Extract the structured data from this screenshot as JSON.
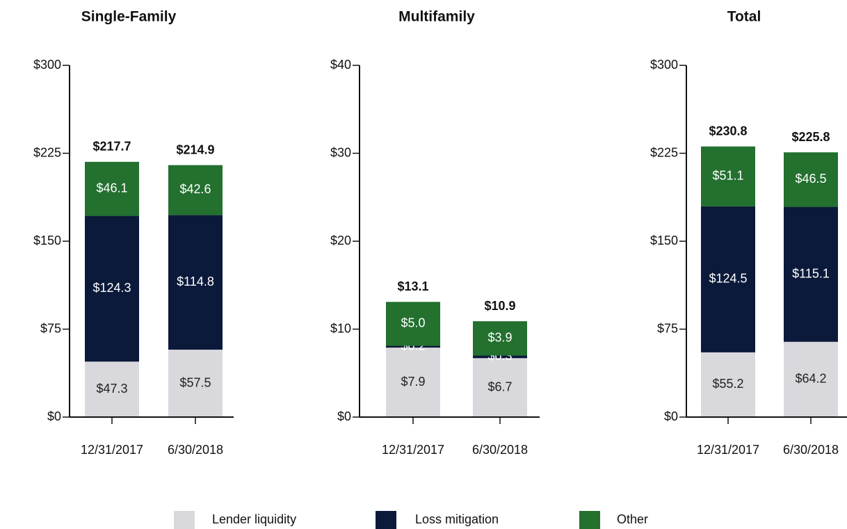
{
  "chart_data": [
    {
      "type": "stacked_bar",
      "title": "Single-Family",
      "categories": [
        "12/31/2017",
        "6/30/2018"
      ],
      "series": [
        {
          "name": "Lender liquidity",
          "color": "#d9d8dd",
          "values": [
            47.3,
            57.5
          ],
          "value_labels": [
            "$47.3",
            "$57.5"
          ]
        },
        {
          "name": "Loss mitigation",
          "color": "#0b1a3a",
          "values": [
            124.3,
            114.8
          ],
          "value_labels": [
            "$124.3",
            "$114.8"
          ]
        },
        {
          "name": "Other",
          "color": "#23702f",
          "values": [
            46.1,
            42.6
          ],
          "value_labels": [
            "$46.1",
            "$42.6"
          ]
        }
      ],
      "totals": [
        217.7,
        214.9
      ],
      "total_labels": [
        "$217.7",
        "$214.9"
      ],
      "ylim": [
        0,
        300
      ],
      "yticks": [
        {
          "value": 0,
          "label": "$0"
        },
        {
          "value": 75,
          "label": "$75"
        },
        {
          "value": 150,
          "label": "$150"
        },
        {
          "value": 225,
          "label": "$225"
        },
        {
          "value": 300,
          "label": "$300"
        }
      ]
    },
    {
      "type": "stacked_bar",
      "title": "Multifamily",
      "categories": [
        "12/31/2017",
        "6/30/2018"
      ],
      "series": [
        {
          "name": "Lender liquidity",
          "color": "#d9d8dd",
          "values": [
            7.9,
            6.7
          ],
          "value_labels": [
            "$7.9",
            "$6.7"
          ]
        },
        {
          "name": "Loss mitigation",
          "color": "#0b1a3a",
          "values": [
            0.2,
            0.3
          ],
          "value_labels": [
            "$0.2",
            "$0.3"
          ]
        },
        {
          "name": "Other",
          "color": "#23702f",
          "values": [
            5.0,
            3.9
          ],
          "value_labels": [
            "$5.0",
            "$3.9"
          ]
        }
      ],
      "totals": [
        13.1,
        10.9
      ],
      "total_labels": [
        "$13.1",
        "$10.9"
      ],
      "ylim": [
        0,
        40
      ],
      "yticks": [
        {
          "value": 0,
          "label": "$0"
        },
        {
          "value": 10,
          "label": "$10"
        },
        {
          "value": 20,
          "label": "$20"
        },
        {
          "value": 30,
          "label": "$30"
        },
        {
          "value": 40,
          "label": "$40"
        }
      ]
    },
    {
      "type": "stacked_bar",
      "title": "Total",
      "categories": [
        "12/31/2017",
        "6/30/2018"
      ],
      "series": [
        {
          "name": "Lender liquidity",
          "color": "#d9d8dd",
          "values": [
            55.2,
            64.2
          ],
          "value_labels": [
            "$55.2",
            "$64.2"
          ]
        },
        {
          "name": "Loss mitigation",
          "color": "#0b1a3a",
          "values": [
            124.5,
            115.1
          ],
          "value_labels": [
            "$124.5",
            "$115.1"
          ]
        },
        {
          "name": "Other",
          "color": "#23702f",
          "values": [
            51.1,
            46.5
          ],
          "value_labels": [
            "$51.1",
            "$46.5"
          ]
        }
      ],
      "totals": [
        230.8,
        225.8
      ],
      "total_labels": [
        "$230.8",
        "$225.8"
      ],
      "ylim": [
        0,
        300
      ],
      "yticks": [
        {
          "value": 0,
          "label": "$0"
        },
        {
          "value": 75,
          "label": "$75"
        },
        {
          "value": 150,
          "label": "$150"
        },
        {
          "value": 225,
          "label": "$225"
        },
        {
          "value": 300,
          "label": "$300"
        }
      ]
    }
  ]
}
